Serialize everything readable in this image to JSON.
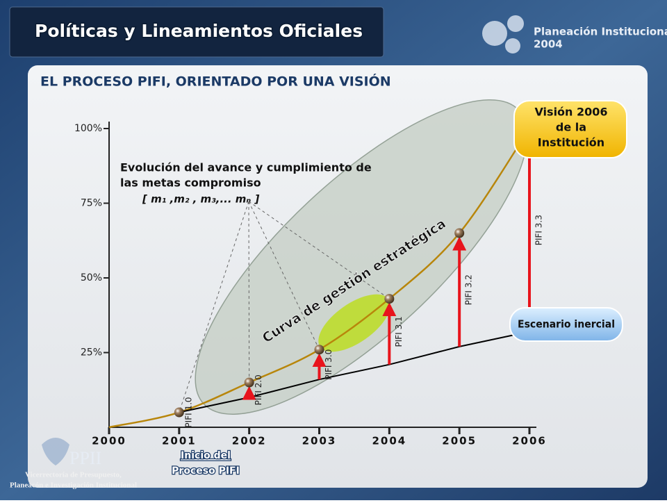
{
  "header": {
    "title": "Políticas y Lineamientos Oficiales",
    "brand": "Planeación Institucional",
    "year": "2004"
  },
  "subtitle": "EL PROCESO PIFI, ORIENTADO POR UNA VISIÓN",
  "chart_data": {
    "type": "line",
    "x": [
      2000,
      2001,
      2002,
      2003,
      2004,
      2005,
      2006
    ],
    "series": [
      {
        "name": "Curva de gestión estratégica",
        "color": "#b8860b",
        "values": [
          0,
          5,
          15,
          26,
          43,
          65,
          100
        ]
      },
      {
        "name": "Escenario inercial",
        "color": "#000000",
        "values": [
          null,
          5,
          10,
          16,
          21,
          27,
          32
        ]
      }
    ],
    "xlim": [
      2000,
      2006
    ],
    "xticks": [
      2000,
      2001,
      2002,
      2003,
      2004,
      2005,
      2006
    ],
    "ylim": [
      0,
      100
    ],
    "yticks": [
      {
        "value": 25,
        "label": "25%"
      },
      {
        "value": 50,
        "label": "50%"
      },
      {
        "value": 75,
        "label": "75%"
      },
      {
        "value": 100,
        "label": "100%"
      }
    ],
    "pifi_labels": [
      null,
      "PIFI 1.0",
      "PIFI 2.0",
      "PIFI 3.0",
      "PIFI 3.1",
      "PIFI 3.2",
      "PIFI 3.3"
    ],
    "annotation": [
      "Evolución del avance y cumplimiento de",
      "las metas compromiso"
    ],
    "annotation_formula": "[ m₁ ,m₂ , m₃,... mₙ ]",
    "vision_box": [
      "Visión 2006",
      "de la",
      "Institución"
    ],
    "start_note": [
      "Inicio del",
      "Proceso PIFI"
    ]
  },
  "logo": {
    "mark": "PPII",
    "lines": [
      "Vicerrectoría de Presupuesto,",
      "Planeacón e Investigación Institucional"
    ]
  }
}
